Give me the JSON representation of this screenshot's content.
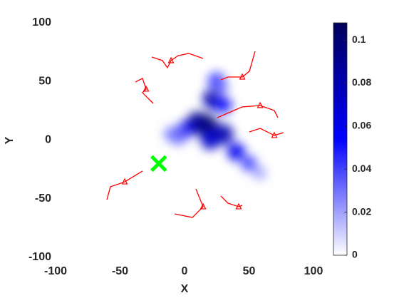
{
  "chart_data": {
    "type": "density-trajectories",
    "xlabel": "X",
    "ylabel": "Y",
    "xlim": [
      -100,
      100
    ],
    "xticks": [
      -100,
      -50,
      0,
      50,
      100
    ],
    "ylim": [
      -100,
      100
    ],
    "yticks": [
      -100,
      -50,
      0,
      50,
      100
    ],
    "density": {
      "x": [
        17,
        22,
        25,
        10,
        0,
        -10,
        30,
        40,
        50,
        58,
        30,
        28,
        -5,
        20
      ],
      "y": [
        12,
        35,
        50,
        15,
        8,
        5,
        5,
        -10,
        -20,
        -28,
        30,
        45,
        2,
        0
      ],
      "values": [
        0.105,
        0.08,
        0.05,
        0.09,
        0.06,
        0.03,
        0.08,
        0.06,
        0.04,
        0.02,
        0.05,
        0.03,
        0.03,
        0.07
      ]
    },
    "colormap": [
      "#ffffff",
      "#0000ff",
      "#00005a"
    ],
    "colorbar": {
      "lim": [
        0,
        0.108
      ],
      "ticks": [
        0,
        0.02,
        0.04,
        0.06,
        0.08,
        0.1
      ]
    },
    "trajectory_color": "#ff0000",
    "trajectories": [
      {
        "x": [
          -25.4,
          -17.1,
          -13.3,
          -10.5,
          -5,
          3.3,
          14.4
        ],
        "y": [
          70.8,
          67.8,
          61.7,
          67.8,
          72,
          73.9,
          69.6
        ]
      },
      {
        "x": [
          -38.1,
          -32.6,
          -29.8,
          -32.6,
          -24.3
        ],
        "y": [
          49.5,
          52.6,
          43.5,
          40.4,
          31.3
        ]
      },
      {
        "x": [
          54.7,
          50.3,
          44.8,
          33.7,
          28.2
        ],
        "y": [
          75.7,
          58.7,
          53.8,
          53.8,
          51.4
        ]
      },
      {
        "x": [
          25.4,
          44.8,
          58.6,
          69.6,
          72.4
        ],
        "y": [
          19.1,
          28.3,
          29.5,
          25.2,
          19.1
        ]
      },
      {
        "x": [
          50.3,
          58.6,
          69.6,
          76.8
        ],
        "y": [
          7,
          10,
          4,
          6.4
        ]
      },
      {
        "x": [
          -60.2,
          -57.5,
          -46.4,
          -32.6
        ],
        "y": [
          -50.8,
          -39.8,
          -35.6,
          -26.4
        ]
      },
      {
        "x": [
          -7.7,
          6.1,
          14.4,
          8.8
        ],
        "y": [
          -62.9,
          -66,
          -56.8,
          -41.6
        ]
      },
      {
        "x": [
          28.2,
          33.7,
          42,
          44.8
        ],
        "y": [
          -47.7,
          -53.8,
          -56.8,
          -55.6
        ]
      }
    ],
    "target": {
      "x": -20,
      "y": -20,
      "color": "#00ff00"
    }
  }
}
